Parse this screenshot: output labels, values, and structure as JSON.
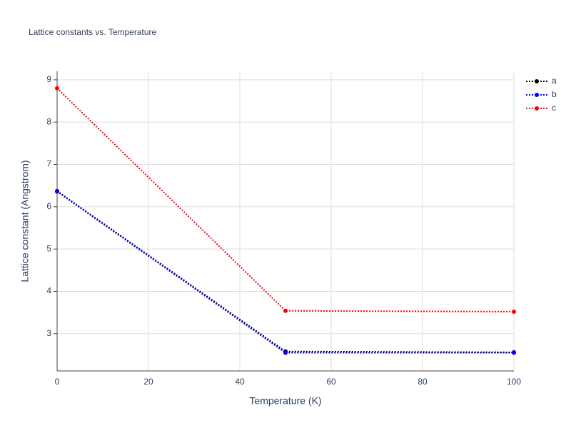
{
  "chart_data": {
    "type": "line",
    "title": "Lattice constants vs. Temperature",
    "xlabel": "Temperature (K)",
    "ylabel": "Lattice constant (Angstrom)",
    "x": [
      0,
      50,
      100
    ],
    "series": [
      {
        "name": "a",
        "color": "#000000",
        "values": [
          6.37,
          2.58,
          2.56
        ]
      },
      {
        "name": "b",
        "color": "#0000ff",
        "values": [
          6.36,
          2.55,
          2.55
        ]
      },
      {
        "name": "c",
        "color": "#ff0000",
        "values": [
          8.8,
          3.54,
          3.52
        ]
      }
    ],
    "xlim": [
      0,
      100
    ],
    "xticks": [
      0,
      20,
      40,
      60,
      80,
      100
    ],
    "ylim": [
      2.12,
      9.2
    ],
    "yticks": [
      3,
      4,
      5,
      6,
      7,
      8,
      9
    ],
    "grid": true,
    "legend": "top-right"
  }
}
